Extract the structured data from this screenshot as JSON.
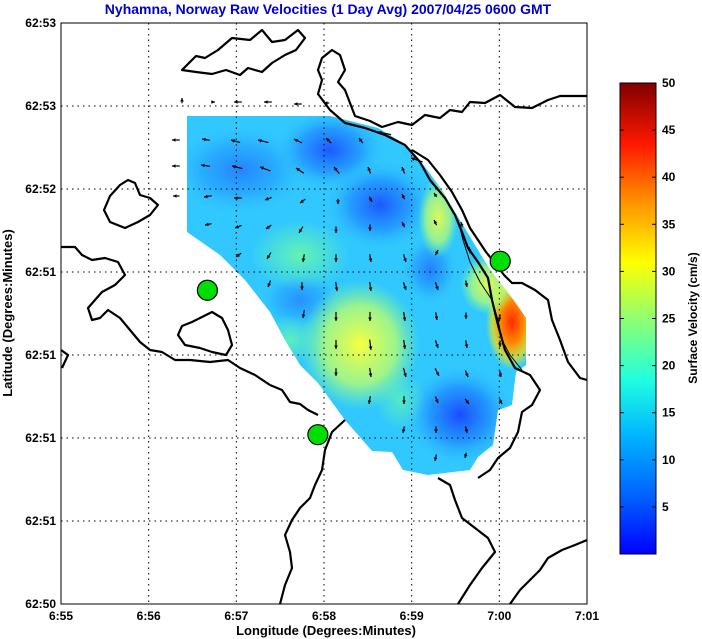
{
  "chart_data": {
    "type": "heatmap",
    "title": "Nyhamna, Norway Raw Velocities (1 Day Avg) 2007/04/25 0600 GMT",
    "xlabel": "Longitude (Degrees:Minutes)",
    "ylabel": "Latitude (Degrees:Minutes)",
    "x_ticks": [
      "6:55",
      "6:56",
      "6:57",
      "6:58",
      "6:59",
      "7:00",
      "7:01"
    ],
    "y_ticks": [
      "62:53",
      "62:53",
      "62:52",
      "62:51",
      "62:51",
      "62:51",
      "62:51",
      "62:50"
    ],
    "xlim": [
      0,
      6
    ],
    "ylim": [
      0,
      7
    ],
    "grid": true,
    "colorbar": {
      "label": "Surface Velocity (cm/s)",
      "range": [
        0,
        50
      ],
      "ticks": [
        5,
        10,
        15,
        20,
        25,
        30,
        35,
        40,
        45,
        50
      ],
      "colormap": "jet"
    },
    "stations": [
      {
        "x": 1.67,
        "y": 3.78
      },
      {
        "x": 2.93,
        "y": 2.04
      },
      {
        "x": 5.01,
        "y": 4.13
      }
    ]
  }
}
